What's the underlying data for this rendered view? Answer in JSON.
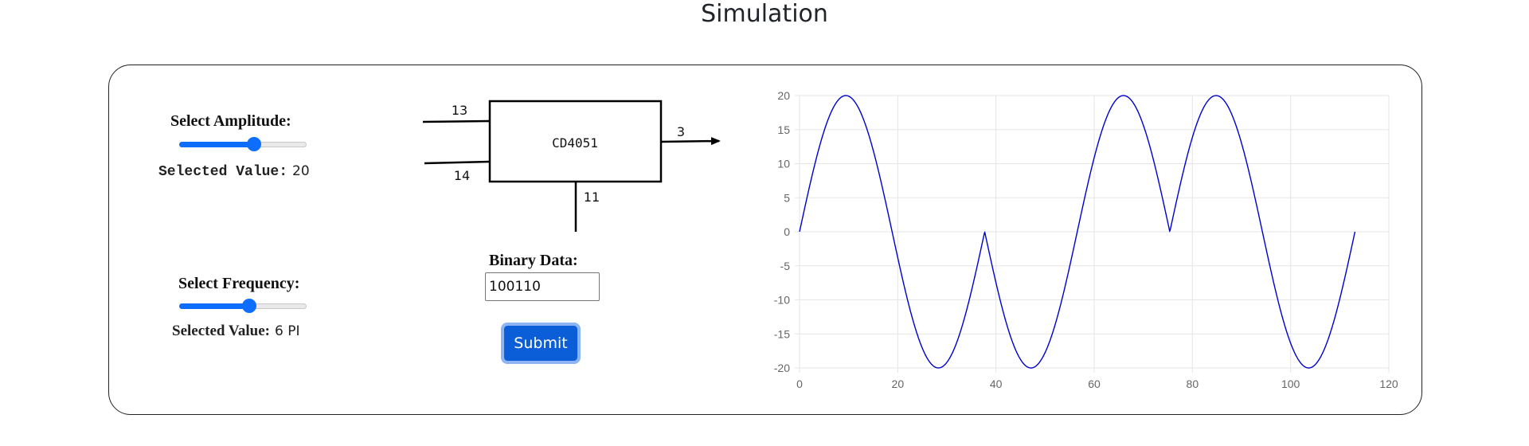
{
  "page": {
    "title": "Simulation"
  },
  "amplitude": {
    "label": "Select Amplitude:",
    "value_label": "Selected Value:",
    "value": "20",
    "slider_fraction": 0.59
  },
  "frequency": {
    "label": "Select Frequency:",
    "value_label": "Selected Value:",
    "value": "6 PI",
    "slider_fraction": 0.55
  },
  "circuit": {
    "chip_label": "CD4051",
    "pin_in_top": "13",
    "pin_in_bottom": "14",
    "pin_out": "3",
    "pin_control": "11"
  },
  "binary": {
    "label": "Binary Data:",
    "value": "100110"
  },
  "submit": {
    "label": "Submit"
  },
  "colors": {
    "accent": "#0d6efd",
    "line": "#0000cd",
    "grid": "#e5e5e5"
  },
  "chart_data": {
    "type": "line",
    "title": "",
    "xlabel": "",
    "ylabel": "",
    "xlim": [
      0,
      120
    ],
    "ylim": [
      -20,
      20
    ],
    "x_ticks": [
      "0",
      "20",
      "40",
      "60",
      "80",
      "100",
      "120"
    ],
    "y_ticks": [
      "20",
      "15",
      "10",
      "5",
      "0",
      "-5",
      "-10",
      "-15",
      "-20"
    ],
    "grid": true,
    "legend": "none",
    "series": [
      {
        "name": "",
        "bits": [
          "1",
          "0",
          "0",
          "1",
          "1",
          "0"
        ],
        "amplitude": 20,
        "cycles_per_bit": 1,
        "bit_duration": 18.85,
        "x_max": 113.1
      }
    ]
  }
}
